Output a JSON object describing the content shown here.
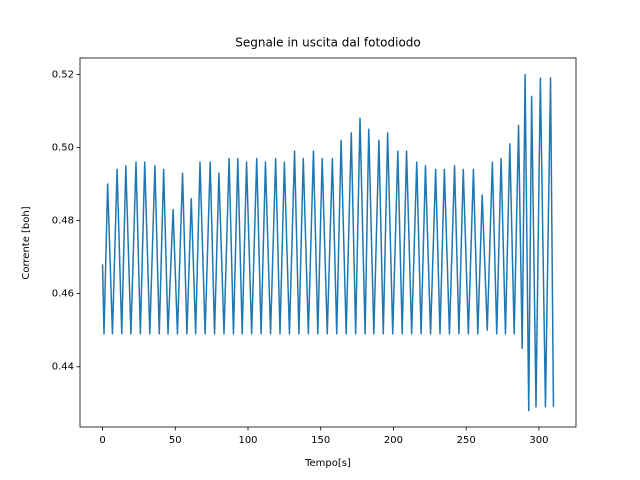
{
  "chart_data": {
    "type": "line",
    "title": "Segnale in uscita dal fotodiodo",
    "x_label": "Tempo[s]",
    "y_label": "Corrente [boh]",
    "color": "#1f77b4",
    "x": [
      0,
      1,
      3.5,
      6.8,
      10,
      13.2,
      16,
      19.5,
      23,
      26,
      29,
      32.5,
      36,
      39,
      42,
      45,
      48.5,
      51.5,
      55,
      58,
      61,
      64,
      67,
      70.5,
      74,
      77,
      80,
      83.5,
      87,
      90,
      93,
      96,
      99,
      102.5,
      106,
      109,
      112,
      115.5,
      119,
      122,
      125,
      128.5,
      132,
      135,
      138,
      141.5,
      145,
      148,
      151,
      154.5,
      158,
      161,
      164,
      167.5,
      171,
      174,
      177,
      180.5,
      183,
      186.5,
      190,
      193,
      196,
      199.5,
      203,
      206,
      209,
      212.5,
      216,
      219,
      222,
      225.5,
      229,
      232,
      235,
      238.5,
      242,
      245,
      248,
      251.5,
      255,
      258,
      261,
      264.5,
      268,
      271,
      274,
      277,
      280,
      283,
      286,
      288.5,
      290.5,
      293,
      295,
      298,
      301,
      304.5,
      308,
      310
    ],
    "values": [
      0.468,
      0.449,
      0.49,
      0.449,
      0.494,
      0.449,
      0.495,
      0.449,
      0.496,
      0.449,
      0.496,
      0.449,
      0.495,
      0.449,
      0.494,
      0.449,
      0.483,
      0.449,
      0.493,
      0.449,
      0.486,
      0.449,
      0.496,
      0.449,
      0.496,
      0.449,
      0.493,
      0.449,
      0.497,
      0.449,
      0.497,
      0.449,
      0.496,
      0.449,
      0.497,
      0.449,
      0.496,
      0.449,
      0.497,
      0.449,
      0.496,
      0.449,
      0.499,
      0.449,
      0.497,
      0.449,
      0.499,
      0.449,
      0.497,
      0.449,
      0.497,
      0.449,
      0.502,
      0.449,
      0.504,
      0.449,
      0.508,
      0.449,
      0.505,
      0.449,
      0.502,
      0.449,
      0.504,
      0.449,
      0.499,
      0.449,
      0.499,
      0.449,
      0.496,
      0.449,
      0.495,
      0.449,
      0.494,
      0.449,
      0.494,
      0.449,
      0.495,
      0.449,
      0.494,
      0.449,
      0.494,
      0.449,
      0.487,
      0.45,
      0.496,
      0.449,
      0.497,
      0.449,
      0.501,
      0.449,
      0.506,
      0.445,
      0.52,
      0.428,
      0.514,
      0.429,
      0.519,
      0.429,
      0.519,
      0.429
    ],
    "xlim": [
      -15.5,
      325.5
    ],
    "ylim": [
      0.4235,
      0.5245
    ],
    "xticks": [
      0,
      50,
      100,
      150,
      200,
      250,
      300
    ],
    "yticks": [
      0.44,
      0.46,
      0.48,
      {
        "value": 0.5,
        "label": "0.50"
      },
      0.52
    ]
  }
}
